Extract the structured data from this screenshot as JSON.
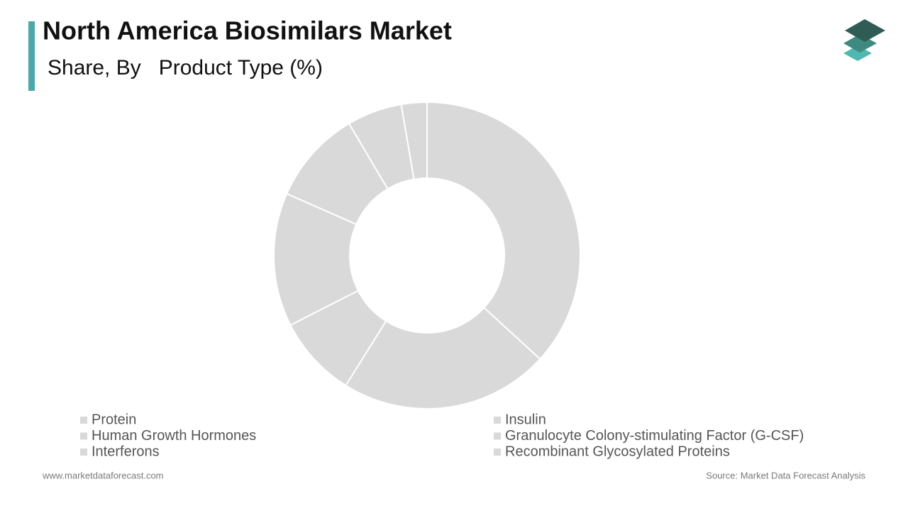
{
  "chart_data": {
    "type": "donut",
    "title": "North America Biosimilars Market",
    "subtitle": "Share, By   Product Type (%)",
    "categories": [
      "Protein",
      "Insulin",
      "Human Growth Hormones",
      "Granulocyte Colony-stimulating Factor (G-CSF)",
      "Interferons",
      "Recombinant Glycosylated Proteins",
      null
    ],
    "values": [
      36.8,
      22.1,
      8.6,
      14.1,
      9.9,
      5.8,
      2.7
    ],
    "colors": [
      "#d9d9d9",
      "#d9d9d9",
      "#d9d9d9",
      "#d9d9d9",
      "#d9d9d9",
      "#d9d9d9",
      "#d9d9d9"
    ],
    "legend_position": "bottom",
    "website": "www.marketdataforecast.com",
    "source": "Source: Market Data Forecast Analysis"
  }
}
